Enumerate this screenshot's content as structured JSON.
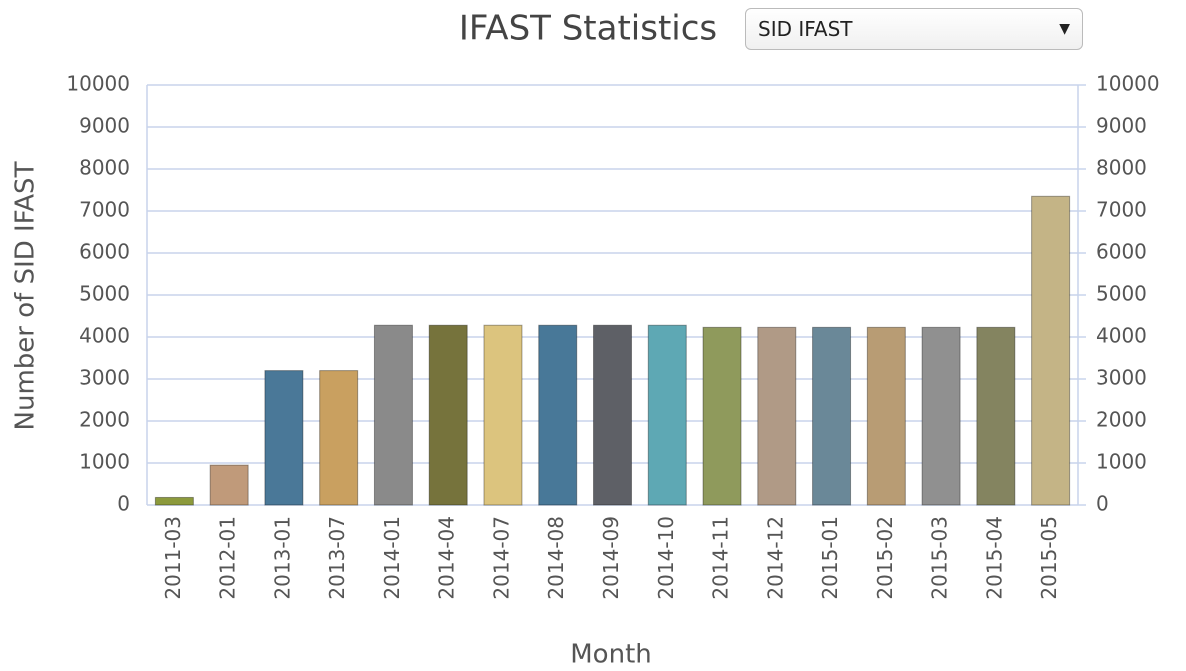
{
  "chart_data": {
    "type": "bar",
    "title": "IFAST Statistics",
    "selector": "SID IFAST",
    "y_label": "Number of SID IFAST",
    "x_label": "Month",
    "categories": [
      "2011-03",
      "2012-01",
      "2013-01",
      "2013-07",
      "2014-01",
      "2014-04",
      "2014-07",
      "2014-08",
      "2014-09",
      "2014-10",
      "2014-11",
      "2014-12",
      "2015-01",
      "2015-02",
      "2015-03",
      "2015-04",
      "2015-05"
    ],
    "values": [
      180,
      950,
      3200,
      3200,
      4280,
      4280,
      4280,
      4280,
      4280,
      4280,
      4230,
      4230,
      4230,
      4230,
      4230,
      4230,
      7350
    ],
    "colors": [
      "#8c9a3c",
      "#c09a7a",
      "#4a7898",
      "#c9a060",
      "#8a8a8a",
      "#76733c",
      "#dcc47e",
      "#487898",
      "#5e6066",
      "#5ea8b4",
      "#8f9a5c",
      "#b09a86",
      "#6a8898",
      "#b89c74",
      "#909090",
      "#848460",
      "#c4b486"
    ],
    "ylim": [
      0,
      10000
    ],
    "yticks": [
      0,
      1000,
      2000,
      3000,
      4000,
      5000,
      6000,
      7000,
      8000,
      9000,
      10000
    ],
    "y2lim": [
      0,
      10000
    ],
    "y2ticks": [
      0,
      1000,
      2000,
      3000,
      4000,
      5000,
      6000,
      7000,
      8000,
      9000,
      10000
    ],
    "grid": true
  }
}
